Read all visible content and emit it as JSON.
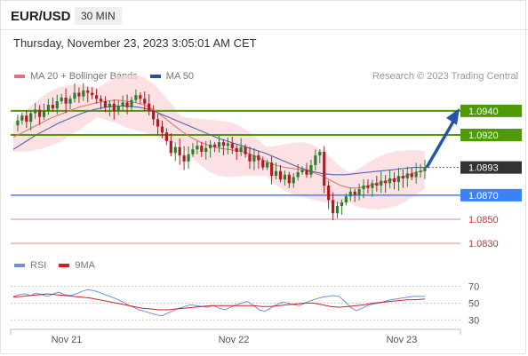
{
  "header": {
    "pair": "EUR/USD",
    "timeframe": "30 MIN",
    "datetime": "Thursday, November 23, 2023 3:05:01 AM CET",
    "legend_ma20": "MA 20 + Bollinger Bands",
    "legend_ma50": "MA 50",
    "credit": "Research © 2023 Trading Central"
  },
  "colors": {
    "up": "#2e7d2e",
    "down": "#b01c22",
    "ma20": "#e57373",
    "ma50": "#5566a8",
    "band": "#f9d7db",
    "green_level": "#4e9a06",
    "blue_level": "#3b82f6",
    "red_level": "#d32f2f",
    "arrow": "#2456a8",
    "rsi": "#6f8fdc",
    "rsi_ma": "#d32020"
  },
  "chart_data": [
    {
      "type": "candlestick",
      "title": "EUR/USD",
      "timeframe": "30 MIN",
      "x_labels": [
        "Nov 21",
        "Nov 22",
        "Nov 23"
      ],
      "ylim": [
        1.0822,
        1.0962
      ],
      "legend_position": "top-left",
      "current_price": "1.0893",
      "levels": [
        {
          "label": "1.0940",
          "value": 1.094,
          "kind": "resistance",
          "color": "green"
        },
        {
          "label": "1.0920",
          "value": 1.092,
          "kind": "resistance",
          "color": "green"
        },
        {
          "label": "1.0870",
          "value": 1.087,
          "kind": "pivot",
          "color": "blue"
        },
        {
          "label": "1.0850",
          "value": 1.085,
          "kind": "support",
          "color": "red"
        },
        {
          "label": "1.0830",
          "value": 1.083,
          "kind": "support",
          "color": "red"
        }
      ],
      "series": [
        {
          "name": "MA 20 + Bollinger Bands"
        },
        {
          "name": "MA 50"
        }
      ],
      "close_path": [
        1.0928,
        1.0932,
        1.0936,
        1.0931,
        1.0938,
        1.0941,
        1.0935,
        1.094,
        1.0945,
        1.0942,
        1.0948,
        1.0951,
        1.0946,
        1.095,
        1.0955,
        1.0952,
        1.0957,
        1.0955,
        1.0953,
        1.095,
        1.0948,
        1.0943,
        1.0946,
        1.094,
        1.0944,
        1.0947,
        1.0943,
        1.0949,
        1.0953,
        1.095,
        1.0946,
        1.094,
        1.0933,
        1.0927,
        1.0922,
        1.0915,
        1.0905,
        1.091,
        1.0903,
        1.0898,
        1.0904,
        1.0908,
        1.0911,
        1.0906,
        1.0909,
        1.0912,
        1.091,
        1.0914,
        1.0911,
        1.0913,
        1.0909,
        1.0906,
        1.091,
        1.0904,
        1.0898,
        1.0903,
        1.0899,
        1.0893,
        1.0897,
        1.0886,
        1.089,
        1.0883,
        1.0887,
        1.088,
        1.0885,
        1.0889,
        1.0891,
        1.0887,
        1.0895,
        1.0903,
        1.0906,
        1.0878,
        1.0866,
        1.0855,
        1.0861,
        1.0864,
        1.0869,
        1.0873,
        1.087,
        1.0875,
        1.0878,
        1.0876,
        1.088,
        1.0878,
        1.0882,
        1.088,
        1.0884,
        1.0881,
        1.0886,
        1.0884,
        1.0888,
        1.0885,
        1.0889,
        1.089,
        1.0893
      ],
      "ma20_path": [
        1.0918,
        1.0922,
        1.0926,
        1.093,
        1.0934,
        1.0937,
        1.094,
        1.0943,
        1.0945,
        1.0947,
        1.0948,
        1.0949,
        1.0948,
        1.0947,
        1.0945,
        1.0941,
        1.0935,
        1.0929,
        1.0923,
        1.0918,
        1.0914,
        1.0911,
        1.0909,
        1.0908,
        1.0907,
        1.0905,
        1.0902,
        1.0898,
        1.0895,
        1.0893,
        1.0892,
        1.0891,
        1.0889,
        1.0886,
        1.0882,
        1.0878,
        1.0876,
        1.0876,
        1.0878,
        1.088,
        1.0882,
        1.0884,
        1.0886,
        1.0889,
        1.0891
      ],
      "ma50_path": [
        1.0908,
        1.0914,
        1.092,
        1.0925,
        1.093,
        1.0934,
        1.0938,
        1.0941,
        1.0943,
        1.0944,
        1.0944,
        1.0943,
        1.0941,
        1.0937,
        1.0933,
        1.0929,
        1.0925,
        1.0921,
        1.0917,
        1.0914,
        1.0911,
        1.0908,
        1.0905,
        1.0901,
        1.0897,
        1.0893,
        1.089,
        1.0888,
        1.0887,
        1.0887,
        1.0888,
        1.0889,
        1.089,
        1.0891,
        1.0892,
        1.0893,
        1.0893
      ]
    },
    {
      "type": "line",
      "title": "RSI",
      "series": [
        {
          "name": "RSI",
          "values": [
            58,
            60,
            61,
            59,
            62,
            60,
            58,
            61,
            63,
            60,
            59,
            61,
            64,
            66,
            65,
            63,
            60,
            58,
            55,
            52,
            48,
            45,
            42,
            40,
            38,
            36,
            35,
            38,
            41,
            44,
            46,
            48,
            47,
            46,
            45,
            47,
            44,
            42,
            45,
            48,
            50,
            52,
            47,
            42,
            40,
            44,
            48,
            51,
            50,
            48,
            47,
            50,
            53,
            55,
            57,
            58,
            59,
            58,
            52,
            45,
            41,
            44,
            47,
            49,
            50,
            52,
            54,
            55,
            56,
            57,
            58,
            58,
            58
          ]
        },
        {
          "name": "9MA",
          "values": [
            57,
            58,
            59,
            60,
            61,
            60,
            59,
            58,
            57,
            56,
            54,
            52,
            50,
            48,
            46,
            44,
            43,
            42,
            42,
            43,
            44,
            45,
            46,
            47,
            47,
            47,
            47,
            47,
            47,
            46,
            46,
            47,
            48,
            49,
            50,
            50,
            48,
            46,
            45,
            46,
            47,
            48,
            50,
            51,
            52,
            53,
            54,
            54,
            55
          ]
        }
      ],
      "y_ticks": [
        70,
        50,
        30
      ],
      "ylim": [
        25,
        78
      ]
    }
  ]
}
